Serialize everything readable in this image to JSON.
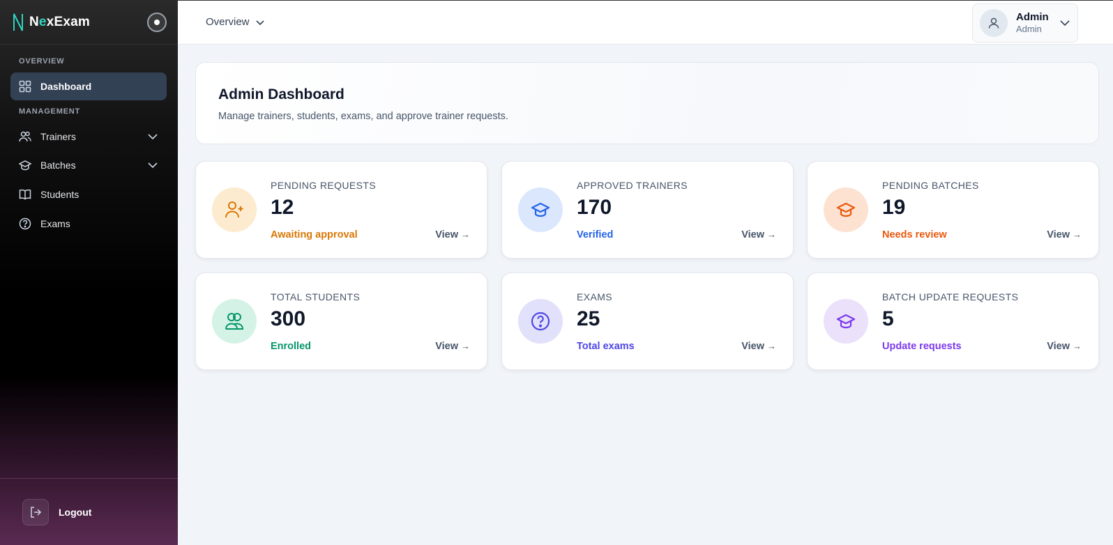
{
  "brand": {
    "first": "N",
    "accent": "e",
    "rest": "xExam"
  },
  "sidebar": {
    "sections": {
      "overview": "OVERVIEW",
      "management": "MANAGEMENT"
    },
    "items": [
      {
        "label": "Dashboard",
        "icon": "grid-icon",
        "active": true
      },
      {
        "label": "Trainers",
        "icon": "users-icon",
        "has_chevron": true
      },
      {
        "label": "Batches",
        "icon": "graduation-cap-icon",
        "has_chevron": true
      },
      {
        "label": "Students",
        "icon": "book-icon"
      },
      {
        "label": "Exams",
        "icon": "help-circle-icon"
      }
    ],
    "logout_label": "Logout"
  },
  "topbar": {
    "breadcrumb": "Overview",
    "user": {
      "name": "Admin",
      "role": "Admin"
    }
  },
  "welcome": {
    "title": "Admin Dashboard",
    "subtitle": "Manage trainers, students, exams, and approve trainer requests."
  },
  "cards": [
    {
      "label": "PENDING REQUESTS",
      "value": "12",
      "status": "Awaiting approval",
      "view": "View",
      "arrow": "→",
      "icon": "user-plus-icon",
      "color": "#d97706",
      "bg": "#fdebcf"
    },
    {
      "label": "APPROVED TRAINERS",
      "value": "170",
      "status": "Verified",
      "view": "View",
      "arrow": "→",
      "icon": "graduation-cap-icon",
      "color": "#2563eb",
      "bg": "#dbe7fd"
    },
    {
      "label": "PENDING BATCHES",
      "value": "19",
      "status": "Needs review",
      "view": "View",
      "arrow": "→",
      "icon": "graduation-cap-icon",
      "color": "#ea580c",
      "bg": "#fde2d2"
    },
    {
      "label": "TOTAL STUDENTS",
      "value": "300",
      "status": "Enrolled",
      "view": "View",
      "arrow": "→",
      "icon": "users-icon",
      "color": "#059669",
      "bg": "#d4f3e6"
    },
    {
      "label": "EXAMS",
      "value": "25",
      "status": "Total exams",
      "view": "View",
      "arrow": "→",
      "icon": "help-circle-icon",
      "color": "#4f46e5",
      "bg": "#e2e1fb"
    },
    {
      "label": "BATCH UPDATE REQUESTS",
      "value": "5",
      "status": "Update requests",
      "view": "View",
      "arrow": "→",
      "icon": "graduation-cap-icon",
      "color": "#7c3aed",
      "bg": "#ece1fb"
    }
  ]
}
